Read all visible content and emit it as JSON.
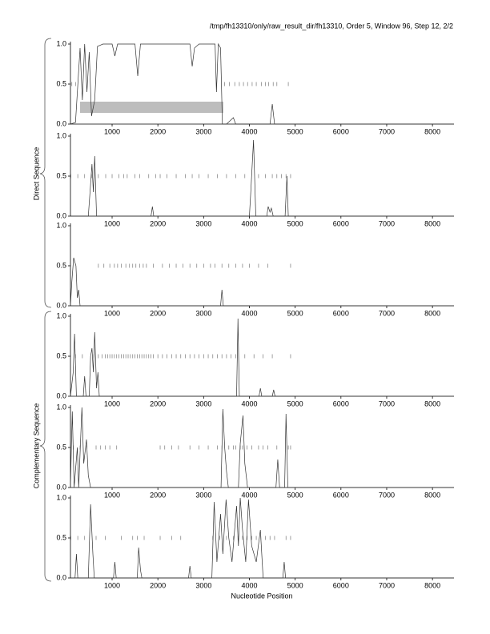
{
  "title": "/tmp/fh13310/only/raw_result_dir/fh13310, Order 5, Window 96, Step 12, 2/2",
  "x_label": "Nucleotide Position",
  "groups": [
    "Direct Sequence",
    "Complementary Sequence"
  ],
  "chart_data": [
    {
      "type": "line",
      "color": "#333333",
      "x": [
        90,
        200,
        300,
        350,
        400,
        450,
        500,
        550,
        620,
        680,
        800,
        1000,
        1060,
        1120,
        1500,
        1560,
        1620,
        2000,
        2700,
        2750,
        2800,
        2900,
        3250,
        3280,
        3320,
        3370,
        3410,
        3500,
        3650,
        3700,
        4450,
        4500,
        4550,
        8470
      ],
      "values": [
        0,
        0.02,
        0.95,
        0.3,
        1,
        0.4,
        0.9,
        0.1,
        0.3,
        0.97,
        1,
        1,
        0.85,
        1,
        1,
        0.6,
        1,
        1,
        1,
        0.72,
        0.95,
        1,
        1,
        0.4,
        1,
        0.95,
        0,
        0,
        0.08,
        0,
        0,
        0.25,
        0,
        0
      ],
      "stops": [
        120,
        200,
        3460,
        3560,
        3680,
        3780,
        3870,
        3960,
        4060,
        4150,
        4260,
        4350,
        4420,
        4520,
        4600,
        4850
      ],
      "highlight": {
        "x": [
          300,
          3430
        ],
        "y": [
          0.14,
          0.28
        ]
      },
      "xlim": [
        90,
        8470
      ],
      "xticks": [
        1000,
        2000,
        3000,
        4000,
        5000,
        6000,
        7000,
        8000
      ],
      "ylim": [
        0,
        1
      ],
      "yticks": [
        {
          "value": 0,
          "label": "0.0"
        },
        0.5,
        {
          "value": 1,
          "label": "1.0"
        }
      ]
    },
    {
      "type": "line",
      "color": "#333333",
      "x": [
        90,
        480,
        530,
        560,
        590,
        620,
        660,
        1850,
        1880,
        1910,
        4000,
        4030,
        4090,
        4140,
        4380,
        4410,
        4450,
        4480,
        4520,
        4780,
        4820,
        4850,
        8470
      ],
      "values": [
        0,
        0,
        0.4,
        0.65,
        0.3,
        0.75,
        0,
        0,
        0.12,
        0,
        0,
        0.3,
        0.95,
        0,
        0,
        0.12,
        0.05,
        0.1,
        0,
        0,
        0.5,
        0,
        0
      ],
      "stops": [
        100,
        250,
        400,
        550,
        700,
        860,
        1000,
        1150,
        1250,
        1330,
        1500,
        1600,
        1800,
        1950,
        2050,
        2200,
        2400,
        2600,
        2750,
        2900,
        3100,
        3300,
        3500,
        3700,
        3900,
        4200,
        4350,
        4500,
        4600,
        4700,
        4800,
        4900
      ],
      "xlim": [
        90,
        8470
      ],
      "xticks": [
        1000,
        2000,
        3000,
        4000,
        5000,
        6000,
        7000,
        8000
      ],
      "ylim": [
        0,
        1
      ],
      "yticks": [
        {
          "value": 0,
          "label": "0.0"
        },
        0.5,
        {
          "value": 1,
          "label": "1.0"
        }
      ]
    },
    {
      "type": "line",
      "color": "#333333",
      "x": [
        90,
        120,
        160,
        210,
        240,
        270,
        300,
        3370,
        3400,
        3430,
        8470
      ],
      "values": [
        0,
        0.3,
        0.6,
        0.5,
        0.1,
        0.2,
        0,
        0,
        0.2,
        0,
        0
      ],
      "stops": [
        700,
        820,
        950,
        1050,
        1120,
        1200,
        1300,
        1380,
        1450,
        1520,
        1600,
        1680,
        1750,
        1900,
        2100,
        2250,
        2400,
        2550,
        2700,
        2850,
        3000,
        3150,
        3250,
        3400,
        3550,
        3700,
        3850,
        4000,
        4200,
        4400,
        4900
      ],
      "xlim": [
        90,
        8470
      ],
      "xticks": [
        1000,
        2000,
        3000,
        4000,
        5000,
        6000,
        7000,
        8000
      ],
      "ylim": [
        0,
        1
      ],
      "yticks": [
        {
          "value": 0,
          "label": "0.0"
        },
        0.5,
        {
          "value": 1,
          "label": "1.0"
        }
      ]
    },
    {
      "type": "line",
      "color": "#333333",
      "x": [
        90,
        150,
        180,
        220,
        370,
        400,
        430,
        500,
        530,
        560,
        590,
        620,
        660,
        690,
        720,
        3720,
        3750,
        3780,
        4210,
        4240,
        4270,
        4500,
        4530,
        4560,
        8470
      ],
      "values": [
        0,
        0.3,
        0.78,
        0,
        0,
        0.25,
        0,
        0,
        0.5,
        0.6,
        0.3,
        0.8,
        0.1,
        0.3,
        0,
        0,
        0.97,
        0,
        0,
        0.1,
        0,
        0,
        0.08,
        0,
        0
      ],
      "stops": [
        200,
        350,
        600,
        700,
        780,
        850,
        900,
        950,
        1000,
        1050,
        1100,
        1150,
        1200,
        1250,
        1300,
        1350,
        1400,
        1450,
        1500,
        1550,
        1600,
        1650,
        1700,
        1750,
        1800,
        1850,
        1900,
        2000,
        2100,
        2200,
        2300,
        2400,
        2500,
        2600,
        2700,
        2800,
        2900,
        3000,
        3100,
        3200,
        3300,
        3400,
        3500,
        3600,
        3700,
        3900,
        4100,
        4300,
        4500,
        4900
      ],
      "xlim": [
        90,
        8470
      ],
      "xticks": [
        1000,
        2000,
        3000,
        4000,
        5000,
        6000,
        7000,
        8000
      ],
      "ylim": [
        0,
        1
      ],
      "yticks": [
        {
          "value": 0,
          "label": "0.0"
        },
        0.5,
        {
          "value": 1,
          "label": "1.0"
        }
      ]
    },
    {
      "type": "line",
      "color": "#333333",
      "x": [
        90,
        110,
        130,
        170,
        240,
        270,
        340,
        380,
        440,
        480,
        530,
        3380,
        3420,
        3460,
        3500,
        3540,
        3760,
        3800,
        3860,
        3900,
        3960,
        4580,
        4620,
        4660,
        4770,
        4800,
        4840,
        8470
      ],
      "values": [
        0,
        0.5,
        0.95,
        0,
        0.5,
        0,
        1,
        0.3,
        0.6,
        0.15,
        0,
        0,
        0.98,
        0.5,
        0.2,
        0,
        0,
        0.55,
        0.9,
        0.3,
        0,
        0,
        0.35,
        0,
        0,
        0.92,
        0,
        0
      ],
      "stops": [
        150,
        300,
        450,
        650,
        750,
        850,
        950,
        1100,
        2050,
        2150,
        2300,
        2450,
        2700,
        2900,
        3100,
        3300,
        3400,
        3550,
        3650,
        3700,
        3800,
        3850,
        3950,
        4050,
        4200,
        4300,
        4400,
        4600,
        4850,
        4900
      ],
      "xlim": [
        90,
        8470
      ],
      "xticks": [
        1000,
        2000,
        3000,
        4000,
        5000,
        6000,
        7000,
        8000
      ],
      "ylim": [
        0,
        1
      ],
      "yticks": [
        {
          "value": 0,
          "label": "0.0"
        },
        0.5,
        {
          "value": 1,
          "label": "1.0"
        }
      ]
    },
    {
      "type": "line",
      "color": "#333333",
      "x": [
        90,
        190,
        220,
        250,
        480,
        530,
        580,
        610,
        1030,
        1060,
        1090,
        1550,
        1580,
        1620,
        1650,
        2670,
        2700,
        2730,
        3180,
        3230,
        3290,
        3370,
        3420,
        3490,
        3550,
        3620,
        3720,
        3760,
        3800,
        3850,
        3920,
        3980,
        4050,
        4150,
        4240,
        4300,
        4730,
        4760,
        4790,
        8470
      ],
      "values": [
        0,
        0,
        0.3,
        0,
        0,
        0.92,
        0.3,
        0,
        0,
        0.2,
        0,
        0,
        0.38,
        0.1,
        0,
        0,
        0.15,
        0,
        0,
        0.95,
        0.2,
        0.8,
        0.3,
        0.98,
        0.5,
        0.2,
        0.9,
        0.4,
        1,
        0.6,
        0.2,
        0.98,
        0.4,
        0.2,
        0.6,
        0,
        0,
        0.2,
        0,
        0
      ],
      "stops": [
        100,
        250,
        400,
        650,
        850,
        1200,
        1450,
        1550,
        1700,
        2050,
        2300,
        2500,
        3200,
        3350,
        3500,
        3650,
        3750,
        3850,
        3950,
        4050,
        4150,
        4250,
        4350,
        4450,
        4550,
        4800,
        4900
      ],
      "xlim": [
        90,
        8470
      ],
      "xticks": [
        1000,
        2000,
        3000,
        4000,
        5000,
        6000,
        7000,
        8000
      ],
      "ylim": [
        0,
        1
      ],
      "yticks": [
        {
          "value": 0,
          "label": "0.0"
        },
        0.5,
        {
          "value": 1,
          "label": "1.0"
        }
      ]
    }
  ]
}
